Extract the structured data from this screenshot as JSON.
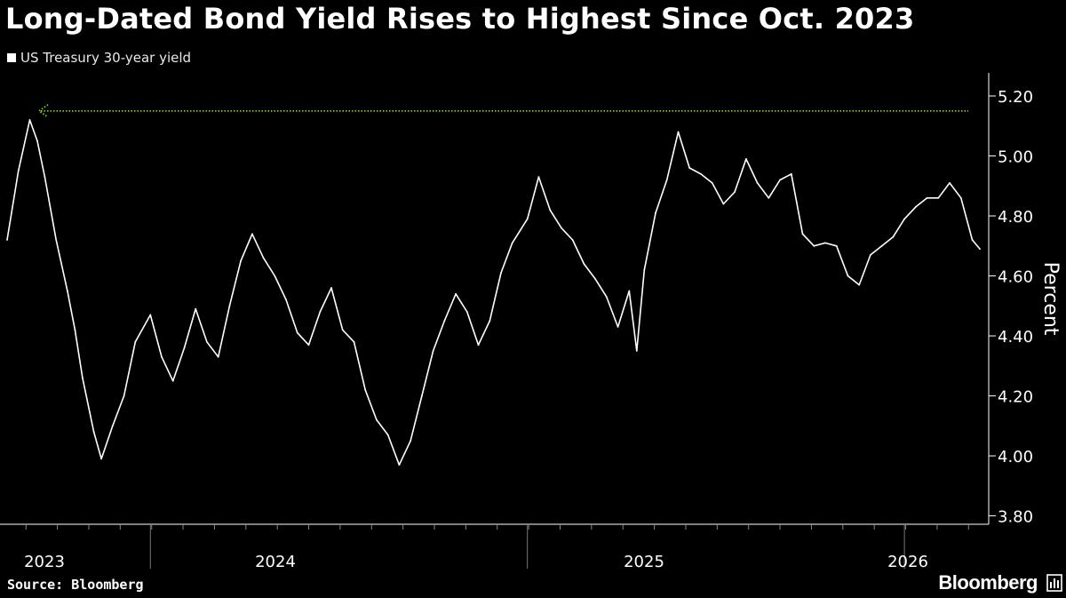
{
  "chart_data": {
    "type": "line",
    "title": "Long-Dated Bond Yield Rises to Highest Since Oct. 2023",
    "ylabel": "Percent",
    "ylim": [
      3.8,
      5.2
    ],
    "y_ticks": [
      "5.20",
      "5.00",
      "4.80",
      "4.60",
      "4.40",
      "4.20",
      "4.00",
      "3.80"
    ],
    "y_tick_values": [
      5.2,
      5.0,
      4.8,
      4.6,
      4.4,
      4.2,
      4.0,
      3.8
    ],
    "xlim": [
      2023.62,
      2026.2
    ],
    "x_tick_labels": [
      {
        "label": "2023",
        "value": 2023.62
      },
      {
        "label": "2024",
        "value": 2024.5
      },
      {
        "label": "2025",
        "value": 2025.5
      },
      {
        "label": "2026",
        "value": 2026.5
      }
    ],
    "legend_position": "top-left",
    "series": [
      {
        "name": "US Treasury 30-year yield",
        "color": "#ffffff",
        "x": [
          2023.62,
          2023.65,
          2023.68,
          2023.7,
          2023.72,
          2023.75,
          2023.78,
          2023.8,
          2023.82,
          2023.85,
          2023.87,
          2023.9,
          2023.93,
          2023.96,
          2024.0,
          2024.03,
          2024.06,
          2024.09,
          2024.12,
          2024.15,
          2024.18,
          2024.21,
          2024.24,
          2024.27,
          2024.3,
          2024.33,
          2024.36,
          2024.39,
          2024.42,
          2024.45,
          2024.48,
          2024.51,
          2024.54,
          2024.57,
          2024.6,
          2024.63,
          2024.66,
          2024.69,
          2024.72,
          2024.75,
          2024.78,
          2024.81,
          2024.84,
          2024.87,
          2024.9,
          2024.93,
          2024.96,
          2025.0,
          2025.03,
          2025.06,
          2025.09,
          2025.12,
          2025.15,
          2025.18,
          2025.21,
          2025.24,
          2025.27,
          2025.29,
          2025.31,
          2025.34,
          2025.37,
          2025.4,
          2025.43,
          2025.46,
          2025.49,
          2025.52,
          2025.55,
          2025.58,
          2025.61,
          2025.64,
          2025.67,
          2025.7,
          2025.73,
          2025.76,
          2025.79,
          2025.82,
          2025.85,
          2025.88,
          2025.91,
          2025.94,
          2025.97,
          2026.0,
          2026.03,
          2026.06,
          2026.09,
          2026.12,
          2026.15,
          2026.18,
          2026.2
        ],
        "values": [
          4.72,
          4.95,
          5.12,
          5.05,
          4.93,
          4.72,
          4.55,
          4.42,
          4.26,
          4.08,
          3.99,
          4.1,
          4.2,
          4.38,
          4.47,
          4.33,
          4.25,
          4.36,
          4.49,
          4.38,
          4.33,
          4.5,
          4.65,
          4.74,
          4.66,
          4.6,
          4.52,
          4.41,
          4.37,
          4.48,
          4.56,
          4.42,
          4.38,
          4.22,
          4.12,
          4.07,
          3.97,
          4.05,
          4.2,
          4.35,
          4.45,
          4.54,
          4.48,
          4.37,
          4.45,
          4.61,
          4.71,
          4.79,
          4.93,
          4.82,
          4.76,
          4.72,
          4.64,
          4.59,
          4.53,
          4.43,
          4.55,
          4.35,
          4.62,
          4.81,
          4.92,
          5.08,
          4.96,
          4.94,
          4.91,
          4.84,
          4.88,
          4.99,
          4.91,
          4.86,
          4.92,
          4.94,
          4.74,
          4.7,
          4.71,
          4.7,
          4.6,
          4.57,
          4.67,
          4.7,
          4.73,
          4.79,
          4.83,
          4.86,
          4.86,
          4.91,
          4.86,
          4.72,
          4.69
        ]
      }
    ],
    "reference_line": {
      "value": 5.15,
      "color": "#7fc241",
      "style": "dotted"
    }
  },
  "source": "Source: Bloomberg",
  "brand": "Bloomberg"
}
